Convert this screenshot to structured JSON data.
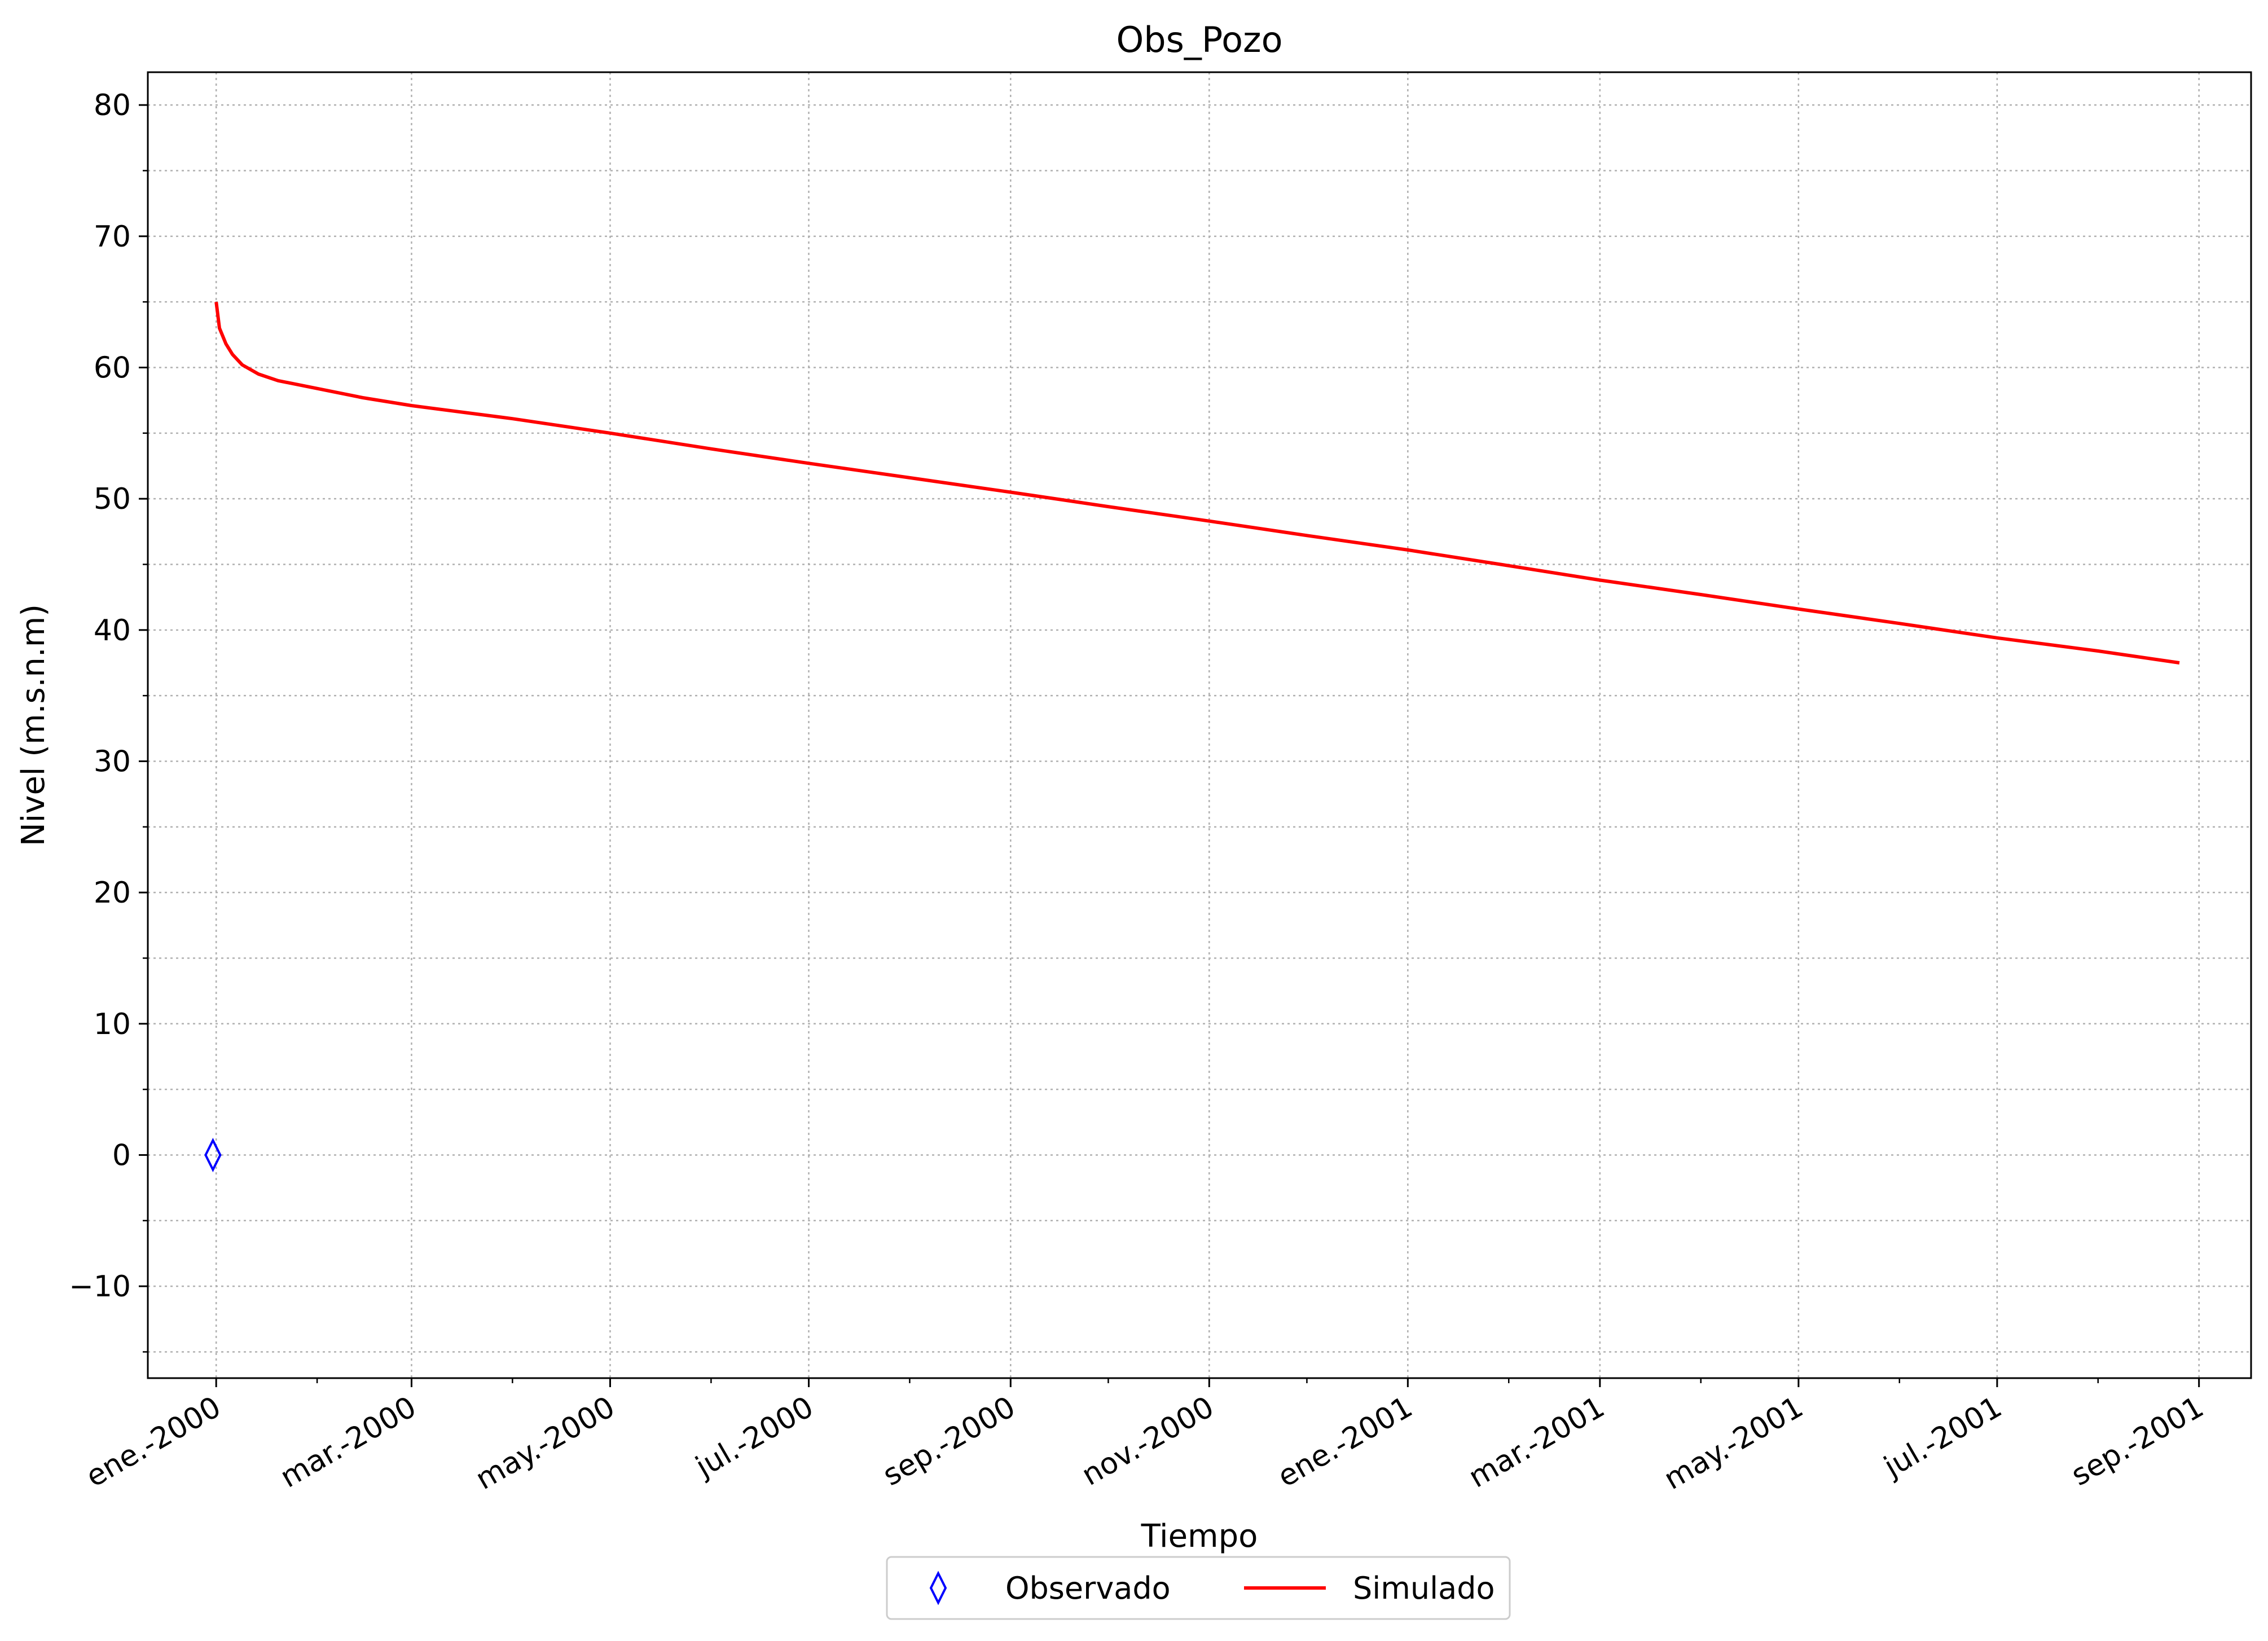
{
  "chart_data": {
    "type": "line",
    "title": "Obs_Pozo",
    "xlabel": "Tiempo",
    "ylabel": "Nivel (m.s.n.m)",
    "xlim": [
      "1999-12-11",
      "2001-09-17"
    ],
    "ylim": [
      -17,
      82.5
    ],
    "y_ticks": [
      -10,
      0,
      10,
      20,
      30,
      40,
      50,
      60,
      70,
      80
    ],
    "y_tick_labels": [
      "−10",
      "0",
      "10",
      "20",
      "30",
      "40",
      "50",
      "60",
      "70",
      "80"
    ],
    "x_ticks": [
      "2000-01-01",
      "2000-03-01",
      "2000-05-01",
      "2000-07-01",
      "2000-09-01",
      "2000-11-01",
      "2001-01-01",
      "2001-03-01",
      "2001-05-01",
      "2001-07-01",
      "2001-09-01"
    ],
    "x_tick_labels": [
      "ene.-2000",
      "mar.-2000",
      "may.-2000",
      "jul.-2000",
      "sep.-2000",
      "nov.-2000",
      "ene.-2001",
      "mar.-2001",
      "may.-2001",
      "jul.-2001",
      "sep.-2001"
    ],
    "grid": true,
    "legend_position": "bottom-center",
    "series": [
      {
        "name": "Observado",
        "type": "scatter",
        "marker": "thin-diamond",
        "color": "#0000ff",
        "x": [
          "1999-12-31"
        ],
        "y": [
          0
        ]
      },
      {
        "name": "Simulado",
        "type": "line",
        "color": "#ff0000",
        "x": [
          "2000-01-01",
          "2000-01-02",
          "2000-01-04",
          "2000-01-06",
          "2000-01-09",
          "2000-01-14",
          "2000-01-20",
          "2000-02-01",
          "2000-02-15",
          "2000-03-01",
          "2000-04-01",
          "2000-05-01",
          "2000-06-01",
          "2000-07-01",
          "2000-08-01",
          "2000-09-01",
          "2000-10-01",
          "2000-11-01",
          "2000-12-01",
          "2001-01-01",
          "2001-02-01",
          "2001-03-01",
          "2001-04-01",
          "2001-05-01",
          "2001-06-01",
          "2001-07-01",
          "2001-08-01",
          "2001-08-26"
        ],
        "y": [
          65.0,
          63.0,
          61.8,
          61.0,
          60.2,
          59.5,
          59.0,
          58.4,
          57.7,
          57.1,
          56.1,
          55.0,
          53.8,
          52.7,
          51.6,
          50.5,
          49.4,
          48.3,
          47.2,
          46.1,
          44.9,
          43.8,
          42.7,
          41.6,
          40.5,
          39.4,
          38.4,
          37.5
        ]
      }
    ]
  }
}
